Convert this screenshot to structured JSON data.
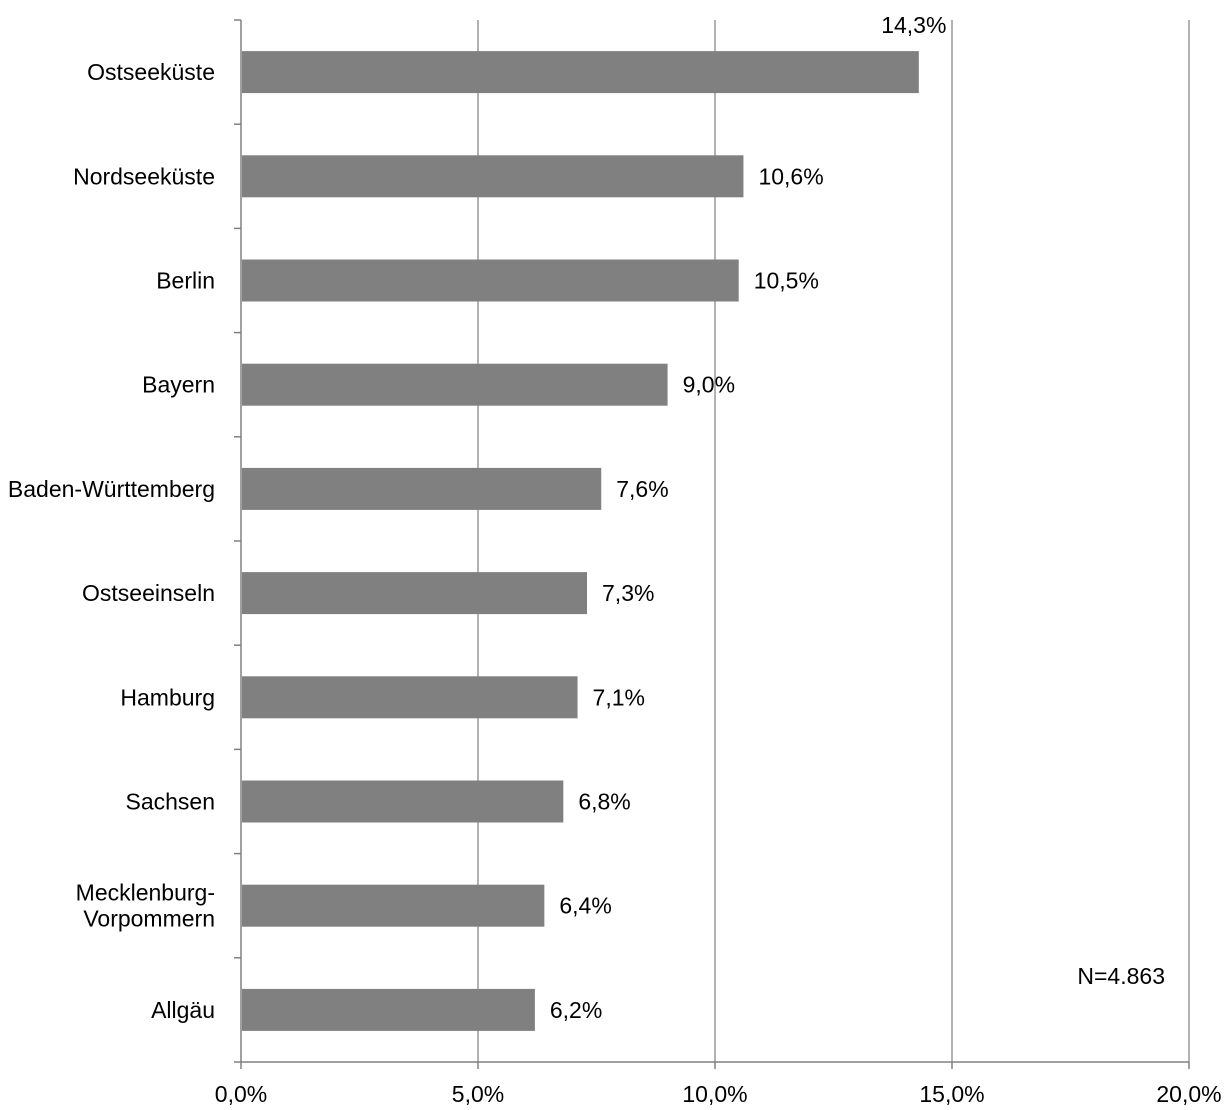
{
  "chart_data": {
    "type": "bar",
    "orientation": "horizontal",
    "categories": [
      "Ostseeküste",
      "Nordseeküste",
      "Berlin",
      "Bayern",
      "Baden-Württemberg",
      "Ostseeinseln",
      "Hamburg",
      "Sachsen",
      "Mecklenburg-Vorpommern",
      "Allgäu"
    ],
    "category_lines": [
      [
        "Ostseeküste"
      ],
      [
        "Nordseeküste"
      ],
      [
        "Berlin"
      ],
      [
        "Bayern"
      ],
      [
        "Baden-Württemberg"
      ],
      [
        "Ostseeinseln"
      ],
      [
        "Hamburg"
      ],
      [
        "Sachsen"
      ],
      [
        "Mecklenburg-",
        "Vorpommern"
      ],
      [
        "Allgäu"
      ]
    ],
    "values": [
      14.3,
      10.6,
      10.5,
      9.0,
      7.6,
      7.3,
      7.1,
      6.8,
      6.4,
      6.2
    ],
    "value_labels": [
      "14,3%",
      "10,6%",
      "10,5%",
      "9,0%",
      "7,6%",
      "7,3%",
      "7,1%",
      "6,8%",
      "6,4%",
      "6,2%"
    ],
    "title": "",
    "xlabel": "",
    "ylabel": "",
    "xlim": [
      0,
      20
    ],
    "ticks": [
      0,
      5,
      10,
      15,
      20
    ],
    "tick_labels": [
      "0,0%",
      "5,0%",
      "10,0%",
      "15,0%",
      "20,0%"
    ],
    "grid": true,
    "legend": "none",
    "annotation": "N=4.863",
    "colors": {
      "bar": "#808080",
      "grid": "#999999",
      "axis": "#808080",
      "text": "#000000"
    }
  }
}
